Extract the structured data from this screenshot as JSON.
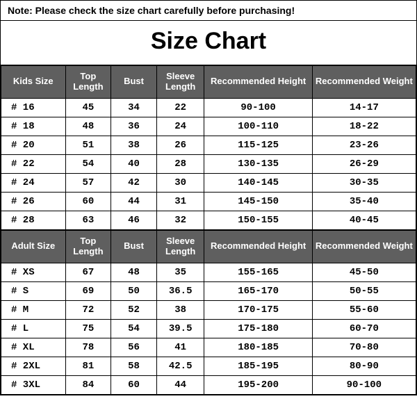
{
  "note": "Note: Please check the size chart carefully before purchasing!",
  "title": "Size Chart",
  "colors": {
    "header_bg": "#5f5f5f",
    "header_fg": "#ffffff",
    "border": "#000000",
    "text": "#000000",
    "bg": "#ffffff"
  },
  "typography": {
    "title_fontsize": 34,
    "title_weight": 900,
    "note_fontsize": 14,
    "header_fontsize": 13,
    "cell_fontsize": 14,
    "cell_font_family": "Courier New"
  },
  "layout": {
    "col_widths_pct": [
      15.5,
      11,
      11,
      11.5,
      26,
      25
    ]
  },
  "kids": {
    "headers": {
      "size": "Kids Size",
      "top": "Top Length",
      "bust": "Bust",
      "sleeve": "Sleeve Length",
      "height": "Recommended Height",
      "weight": "Recommended Weight"
    },
    "rows": [
      {
        "size": "# 16",
        "top": "45",
        "bust": "34",
        "sleeve": "22",
        "height": "90-100",
        "weight": "14-17"
      },
      {
        "size": "# 18",
        "top": "48",
        "bust": "36",
        "sleeve": "24",
        "height": "100-110",
        "weight": "18-22"
      },
      {
        "size": "# 20",
        "top": "51",
        "bust": "38",
        "sleeve": "26",
        "height": "115-125",
        "weight": "23-26"
      },
      {
        "size": "# 22",
        "top": "54",
        "bust": "40",
        "sleeve": "28",
        "height": "130-135",
        "weight": "26-29"
      },
      {
        "size": "# 24",
        "top": "57",
        "bust": "42",
        "sleeve": "30",
        "height": "140-145",
        "weight": "30-35"
      },
      {
        "size": "# 26",
        "top": "60",
        "bust": "44",
        "sleeve": "31",
        "height": "145-150",
        "weight": "35-40"
      },
      {
        "size": "# 28",
        "top": "63",
        "bust": "46",
        "sleeve": "32",
        "height": "150-155",
        "weight": "40-45"
      }
    ]
  },
  "adult": {
    "headers": {
      "size": "Adult Size",
      "top": "Top Length",
      "bust": "Bust",
      "sleeve": "Sleeve Length",
      "height": "Recommended Height",
      "weight": "Recommended Weight"
    },
    "rows": [
      {
        "size": "# XS",
        "top": "67",
        "bust": "48",
        "sleeve": "35",
        "height": "155-165",
        "weight": "45-50"
      },
      {
        "size": "# S",
        "top": "69",
        "bust": "50",
        "sleeve": "36.5",
        "height": "165-170",
        "weight": "50-55"
      },
      {
        "size": "# M",
        "top": "72",
        "bust": "52",
        "sleeve": "38",
        "height": "170-175",
        "weight": "55-60"
      },
      {
        "size": "# L",
        "top": "75",
        "bust": "54",
        "sleeve": "39.5",
        "height": "175-180",
        "weight": "60-70"
      },
      {
        "size": "# XL",
        "top": "78",
        "bust": "56",
        "sleeve": "41",
        "height": "180-185",
        "weight": "70-80"
      },
      {
        "size": "# 2XL",
        "top": "81",
        "bust": "58",
        "sleeve": "42.5",
        "height": "185-195",
        "weight": "80-90"
      },
      {
        "size": "# 3XL",
        "top": "84",
        "bust": "60",
        "sleeve": "44",
        "height": "195-200",
        "weight": "90-100"
      }
    ]
  }
}
